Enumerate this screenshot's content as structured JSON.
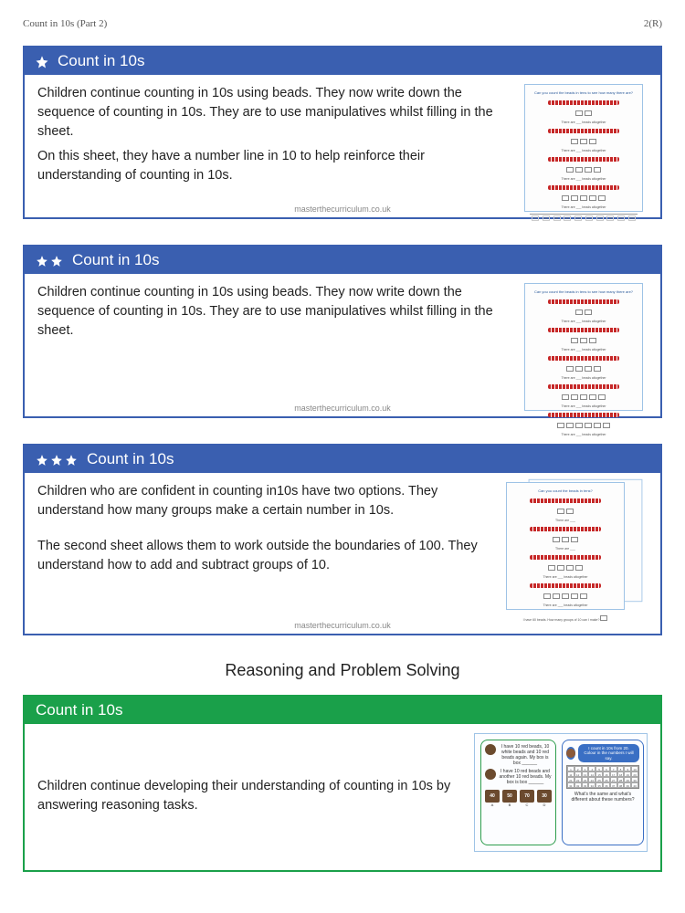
{
  "page": {
    "header_left": "Count in 10s (Part 2)",
    "header_right": "2(R)"
  },
  "footer_url": "masterthecurriculum.co.uk",
  "section_title": "Reasoning and Problem Solving",
  "colors": {
    "blue": "#3a5fb0",
    "green": "#1aa04a"
  },
  "cards": [
    {
      "stars": 1,
      "title": "Count in 10s",
      "variant": "blue",
      "paragraphs": [
        "Children continue counting in 10s using beads. They now write down the sequence of counting in 10s. They are to use manipulatives whilst filling in the sheet.",
        "On this sheet, they have a number line in 10 to help reinforce their understanding of counting in 10s."
      ],
      "thumb_rows": 4,
      "show_numberline": true
    },
    {
      "stars": 2,
      "title": "Count in 10s",
      "variant": "blue",
      "paragraphs": [
        "Children continue counting in 10s using beads. They now write down the sequence of counting in 10s. They are to use manipulatives whilst filling in the sheet."
      ],
      "thumb_rows": 5,
      "show_numberline": false
    },
    {
      "stars": 3,
      "title": "Count in 10s",
      "variant": "blue",
      "paragraphs": [
        "Children who are confident in counting in10s have two options. They understand how many groups make a certain number in 10s.",
        "",
        "The second sheet allows them to work outside the boundaries of 100. They understand how to add and subtract groups of 10."
      ],
      "thumb_rows": 4,
      "show_numberline": false,
      "stacked": true
    }
  ],
  "reasoning_card": {
    "title": "Count in 10s",
    "variant": "green",
    "paragraph": "Children continue developing their understanding of counting in 10s by answering reasoning tasks.",
    "left_box": {
      "line1": "I have 10 red beads, 10 white beads and 10 red beads again. My box is box ______",
      "line2": "I have 10 red beads and another 10 red beads. My box is box ______",
      "chests": [
        "40",
        "50",
        "70",
        "30"
      ],
      "chest_labels": [
        "A",
        "B",
        "C",
        "D"
      ]
    },
    "right_box": {
      "banner": "I count in 10s from 20. Colour in the numbers I will say.",
      "caption": "What's the same and what's different about these numbers?"
    }
  },
  "numberline_values": [
    "10",
    "20",
    "30",
    "40",
    "50",
    "60",
    "70",
    "80",
    "90",
    "100"
  ]
}
